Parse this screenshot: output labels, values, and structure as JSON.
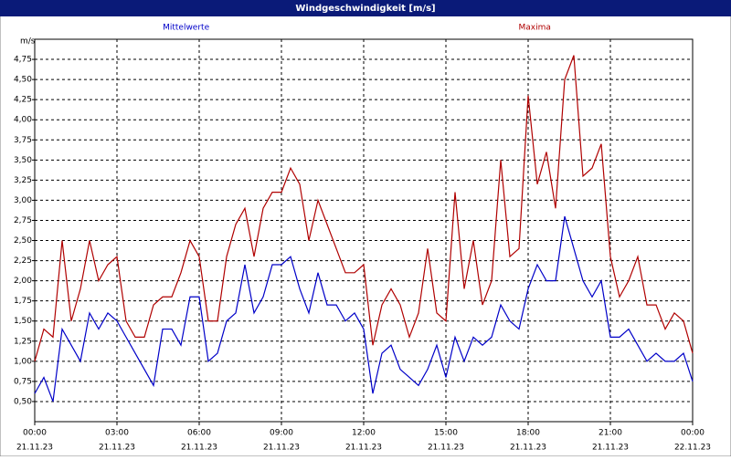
{
  "chart_data": {
    "type": "line",
    "title": "Windgeschwindigkeit [m/s]",
    "y_label": "m/s",
    "x": [
      0,
      20,
      40,
      60,
      80,
      100,
      120,
      140,
      160,
      180,
      200,
      220,
      240,
      260,
      280,
      300,
      320,
      340,
      360,
      380,
      400,
      420,
      440,
      460,
      480,
      500,
      520,
      540,
      560,
      580,
      600,
      620,
      640,
      660,
      680,
      700,
      720,
      740,
      760,
      780,
      800,
      820,
      840,
      860,
      880,
      900,
      920,
      940,
      960,
      980,
      1000,
      1020,
      1040,
      1060,
      1080,
      1100,
      1120,
      1140,
      1160,
      1180,
      1200,
      1220,
      1240,
      1260,
      1280,
      1300,
      1320,
      1340,
      1360,
      1380,
      1400,
      1420,
      1440
    ],
    "series": [
      {
        "name": "Mittelwerte",
        "color": "#0000c8",
        "values": [
          0.6,
          0.8,
          0.5,
          1.4,
          1.2,
          1.0,
          1.6,
          1.4,
          1.6,
          1.5,
          1.3,
          1.1,
          0.9,
          0.7,
          1.4,
          1.4,
          1.2,
          1.8,
          1.8,
          1.0,
          1.1,
          1.5,
          1.6,
          2.2,
          1.6,
          1.8,
          2.2,
          2.2,
          2.3,
          1.9,
          1.6,
          2.1,
          1.7,
          1.7,
          1.5,
          1.6,
          1.4,
          0.6,
          1.1,
          1.2,
          0.9,
          0.8,
          0.7,
          0.9,
          1.2,
          0.8,
          1.3,
          1.0,
          1.3,
          1.2,
          1.3,
          1.7,
          1.5,
          1.4,
          1.9,
          2.2,
          2.0,
          2.0,
          2.8,
          2.4,
          2.0,
          1.8,
          2.0,
          1.3,
          1.3,
          1.4,
          1.2,
          1.0,
          1.1,
          1.0,
          1.0,
          1.1,
          0.75
        ]
      },
      {
        "name": "Maxima",
        "color": "#b00000",
        "values": [
          1.0,
          1.4,
          1.3,
          2.5,
          1.5,
          1.9,
          2.5,
          2.0,
          2.2,
          2.3,
          1.5,
          1.3,
          1.3,
          1.7,
          1.8,
          1.8,
          2.1,
          2.5,
          2.3,
          1.5,
          1.5,
          2.3,
          2.7,
          2.9,
          2.3,
          2.9,
          3.1,
          3.1,
          3.4,
          3.2,
          2.5,
          3.0,
          2.7,
          2.4,
          2.1,
          2.1,
          2.2,
          1.2,
          1.7,
          1.9,
          1.7,
          1.3,
          1.6,
          2.4,
          1.6,
          1.5,
          3.1,
          1.9,
          2.5,
          1.7,
          2.0,
          3.5,
          2.3,
          2.4,
          4.3,
          3.2,
          3.6,
          2.9,
          4.5,
          4.8,
          3.3,
          3.4,
          3.7,
          2.3,
          1.8,
          2.0,
          2.3,
          1.7,
          1.7,
          1.4,
          1.6,
          1.5,
          1.1
        ]
      }
    ],
    "xlim": [
      0,
      1440
    ],
    "xticks": [
      {
        "value": 0,
        "label": "00:00"
      },
      {
        "value": 180,
        "label": "03:00"
      },
      {
        "value": 360,
        "label": "06:00"
      },
      {
        "value": 540,
        "label": "09:00"
      },
      {
        "value": 720,
        "label": "12:00"
      },
      {
        "value": 900,
        "label": "15:00"
      },
      {
        "value": 1080,
        "label": "18:00"
      },
      {
        "value": 1260,
        "label": "21:00"
      },
      {
        "value": 1440,
        "label": "00:00"
      }
    ],
    "xtick_dates": [
      "21.11.23",
      "21.11.23",
      "21.11.23",
      "21.11.23",
      "21.11.23",
      "21.11.23",
      "21.11.23",
      "21.11.23",
      "22.11.23"
    ],
    "ylim": [
      0.25,
      5.0
    ],
    "yticks": [
      {
        "value": 0.5,
        "label": "0,50"
      },
      {
        "value": 0.75,
        "label": "0,75"
      },
      {
        "value": 1.0,
        "label": "1,00"
      },
      {
        "value": 1.25,
        "label": "1,25"
      },
      {
        "value": 1.5,
        "label": "1,50"
      },
      {
        "value": 1.75,
        "label": "1,75"
      },
      {
        "value": 2.0,
        "label": "2,00"
      },
      {
        "value": 2.25,
        "label": "2,25"
      },
      {
        "value": 2.5,
        "label": "2,50"
      },
      {
        "value": 2.75,
        "label": "2,75"
      },
      {
        "value": 3.0,
        "label": "3,00"
      },
      {
        "value": 3.25,
        "label": "3,25"
      },
      {
        "value": 3.5,
        "label": "3,50"
      },
      {
        "value": 3.75,
        "label": "3,75"
      },
      {
        "value": 4.0,
        "label": "4,00"
      },
      {
        "value": 4.25,
        "label": "4,25"
      },
      {
        "value": 4.5,
        "label": "4,50"
      },
      {
        "value": 4.75,
        "label": "4,75"
      }
    ],
    "grid": true
  }
}
